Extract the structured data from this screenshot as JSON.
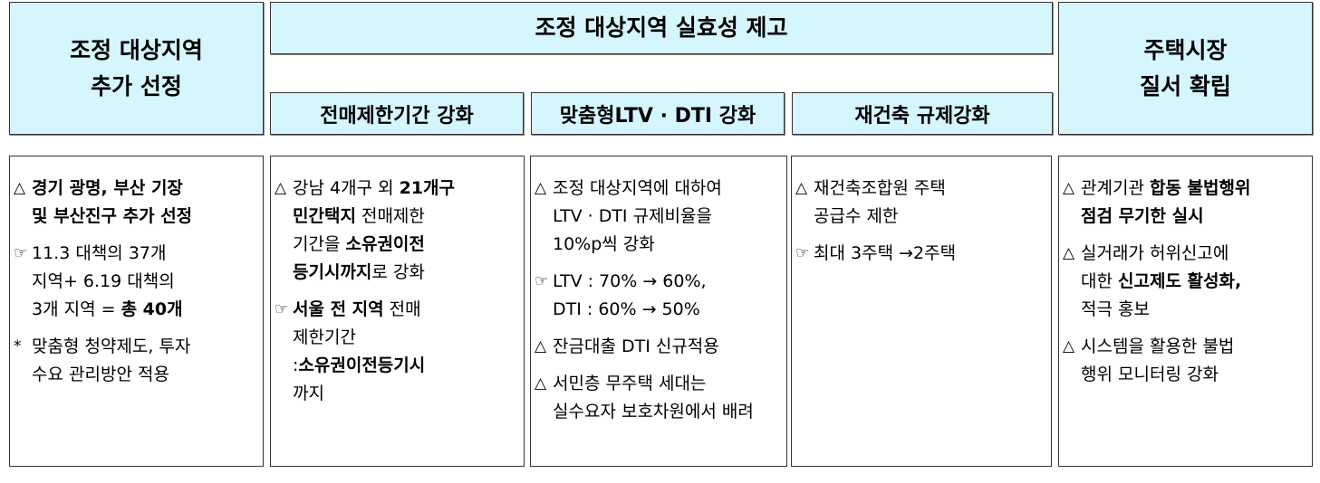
{
  "headers": {
    "col1": [
      "조정 대상지역",
      "추가 선정"
    ],
    "banner": "조정 대상지역 실효성 제고",
    "sub1": "전매제한기간 강화",
    "sub2": "맞춤형LTV · DTI 강화",
    "sub3": "재건축 규제강화",
    "col5": [
      "주택시장",
      "질서 확립"
    ]
  },
  "colors": {
    "header_fill": "#d6f6fe",
    "border": "#333333"
  },
  "columns": [
    {
      "paragraphs": [
        {
          "marker": "△",
          "lines": [
            [
              {
                "t": "경기 광명, 부산 기장",
                "b": true
              }
            ],
            [
              {
                "t": "및 부산진구 추가 선정",
                "b": true
              }
            ]
          ]
        },
        {
          "marker": "☞",
          "lines": [
            [
              {
                "t": "11.3 대책의 37개"
              }
            ],
            [
              {
                "t": "지역+ 6.19 대책의"
              }
            ],
            [
              {
                "t": "3개 지역 = "
              },
              {
                "t": "총 40개",
                "b": true
              }
            ]
          ]
        },
        {
          "marker": "*",
          "lines": [
            [
              {
                "t": "맞춤형 청약제도, 투자"
              }
            ],
            [
              {
                "t": "수요 관리방안 적용"
              }
            ]
          ]
        }
      ]
    },
    {
      "paragraphs": [
        {
          "marker": "△",
          "lines": [
            [
              {
                "t": "강남 4개구 외 "
              },
              {
                "t": "21개구",
                "b": true
              }
            ],
            [
              {
                "t": "민간택지",
                "b": true
              },
              {
                "t": "  전매제한"
              }
            ],
            [
              {
                "t": "기간을  "
              },
              {
                "t": "소유권이전",
                "b": true
              }
            ],
            [
              {
                "t": "등기시까지",
                "b": true
              },
              {
                "t": "로 강화"
              }
            ]
          ]
        },
        {
          "marker": "☞",
          "lines": [
            [
              {
                "t": "서울 전 지역",
                "b": true
              },
              {
                "t": " 전매"
              }
            ],
            [
              {
                "t": "제한기간"
              }
            ],
            [
              {
                "t": ":"
              },
              {
                "t": "소유권이전등기시",
                "b": true
              }
            ],
            [
              {
                "t": "까지"
              }
            ]
          ]
        }
      ]
    },
    {
      "paragraphs": [
        {
          "marker": "△",
          "lines": [
            [
              {
                "t": "조정 대상지역에 대하여"
              }
            ],
            [
              {
                "t": "LTV · DTI 규제비율을"
              }
            ],
            [
              {
                "t": "10%p씩 강화"
              }
            ]
          ]
        },
        {
          "marker": "☞",
          "lines": [
            [
              {
                "t": "LTV : 70% → 60%,"
              }
            ],
            [
              {
                "t": "DTI : 60% → 50%"
              }
            ]
          ]
        },
        {
          "marker": "△",
          "lines": [
            [
              {
                "t": "잔금대출 DTI 신규적용"
              }
            ]
          ]
        },
        {
          "marker": "△",
          "lines": [
            [
              {
                "t": "서민층 무주택 세대는"
              }
            ],
            [
              {
                "t": "실수요자 보호차원에서 배려"
              }
            ]
          ]
        }
      ]
    },
    {
      "paragraphs": [
        {
          "marker": "△",
          "lines": [
            [
              {
                "t": "재건축조합원 주택"
              }
            ],
            [
              {
                "t": "공급수 제한"
              }
            ]
          ]
        },
        {
          "marker": "☞",
          "lines": [
            [
              {
                "t": "최대 3주택 →2주택"
              }
            ]
          ]
        }
      ]
    },
    {
      "paragraphs": [
        {
          "marker": "△",
          "lines": [
            [
              {
                "t": "관계기관 "
              },
              {
                "t": "합동 불법행위",
                "b": true
              }
            ],
            [
              {
                "t": "점검 무기한 실시",
                "b": true
              }
            ]
          ]
        },
        {
          "marker": "△",
          "lines": [
            [
              {
                "t": "실거래가 허위신고에"
              }
            ],
            [
              {
                "t": "대한 "
              },
              {
                "t": "신고제도 활성화,",
                "b": true
              }
            ],
            [
              {
                "t": "적극 홍보"
              }
            ]
          ]
        },
        {
          "marker": "△",
          "lines": [
            [
              {
                "t": "시스템을 활용한 불법"
              }
            ],
            [
              {
                "t": "행위 모니터링 강화"
              }
            ]
          ]
        }
      ]
    }
  ]
}
